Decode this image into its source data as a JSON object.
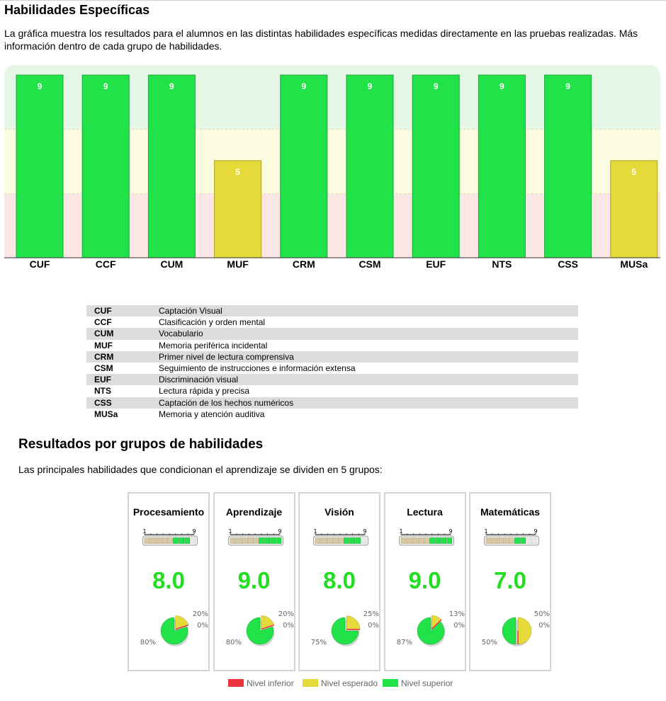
{
  "section1": {
    "title": "Habilidades Específicas",
    "description": "La gráfica muestra los resultados para el alumnos en las distintas habilidades específicas medidas directamente en las pruebas realizadas. Más información dentro de cada grupo de habilidades."
  },
  "chart_data": {
    "type": "bar",
    "categories": [
      "CUF",
      "CCF",
      "CUM",
      "MUF",
      "CRM",
      "CSM",
      "EUF",
      "NTS",
      "CSS",
      "MUSa"
    ],
    "values": [
      9,
      9,
      9,
      5,
      9,
      9,
      9,
      9,
      9,
      5
    ],
    "ylim": [
      0,
      9
    ],
    "bands": [
      {
        "from": 6,
        "to": 9,
        "color": "#e6f6e6"
      },
      {
        "from": 3,
        "to": 6,
        "color": "#fbfbe0"
      },
      {
        "from": 0,
        "to": 3,
        "color": "#fbe6e6"
      }
    ],
    "level_colors": {
      "high": "#22e24a",
      "mid": "#e6d93a"
    },
    "grid": false
  },
  "glossary": [
    {
      "code": "CUF",
      "label": "Captación Visual"
    },
    {
      "code": "CCF",
      "label": "Clasificación y orden mental"
    },
    {
      "code": "CUM",
      "label": "Vocabulario"
    },
    {
      "code": "MUF",
      "label": "Memoria periférica incidental"
    },
    {
      "code": "CRM",
      "label": "Primer nivel de lectura comprensiva"
    },
    {
      "code": "CSM",
      "label": "Seguimiento de instrucciones e información extensa"
    },
    {
      "code": "EUF",
      "label": "Discriminación visual"
    },
    {
      "code": "NTS",
      "label": "Lectura rápida y precisa"
    },
    {
      "code": "CSS",
      "label": "Captación de los hechos numéricos"
    },
    {
      "code": "MUSa",
      "label": "Memoria y atención auditiva"
    }
  ],
  "section2": {
    "title": "Resultados por grupos de habilidades",
    "description": "Las principales habilidades que condicionan el aprendizaje se dividen en 5 grupos:"
  },
  "scale": {
    "min_label": "1",
    "max_label": "9"
  },
  "groups": [
    {
      "name": "Procesamiento",
      "score": "8.0",
      "level": 8,
      "pie": {
        "superior": 80,
        "esperado": 20,
        "inferior": 0
      },
      "labels": {
        "superior": "80%",
        "esperado": "20%",
        "inferior": "0%"
      }
    },
    {
      "name": "Aprendizaje",
      "score": "9.0",
      "level": 9,
      "pie": {
        "superior": 80,
        "esperado": 20,
        "inferior": 0
      },
      "labels": {
        "superior": "80%",
        "esperado": "20%",
        "inferior": "0%"
      }
    },
    {
      "name": "Visión",
      "score": "8.0",
      "level": 8,
      "pie": {
        "superior": 75,
        "esperado": 25,
        "inferior": 0
      },
      "labels": {
        "superior": "75%",
        "esperado": "25%",
        "inferior": "0%"
      }
    },
    {
      "name": "Lectura",
      "score": "9.0",
      "level": 9,
      "pie": {
        "superior": 87,
        "esperado": 13,
        "inferior": 0
      },
      "labels": {
        "superior": "87%",
        "esperado": "13%",
        "inferior": "0%"
      }
    },
    {
      "name": "Matemáticas",
      "score": "7.0",
      "level": 7,
      "pie": {
        "superior": 50,
        "esperado": 50,
        "inferior": 0
      },
      "labels": {
        "superior": "50%",
        "esperado": "50%",
        "inferior": "0%"
      }
    }
  ],
  "pie_legend": [
    {
      "label": "Nivel inferior",
      "color": "#e8343c"
    },
    {
      "label": "Nivel esperado",
      "color": "#e6d93a"
    },
    {
      "label": "Nivel superior",
      "color": "#22e24a"
    }
  ]
}
